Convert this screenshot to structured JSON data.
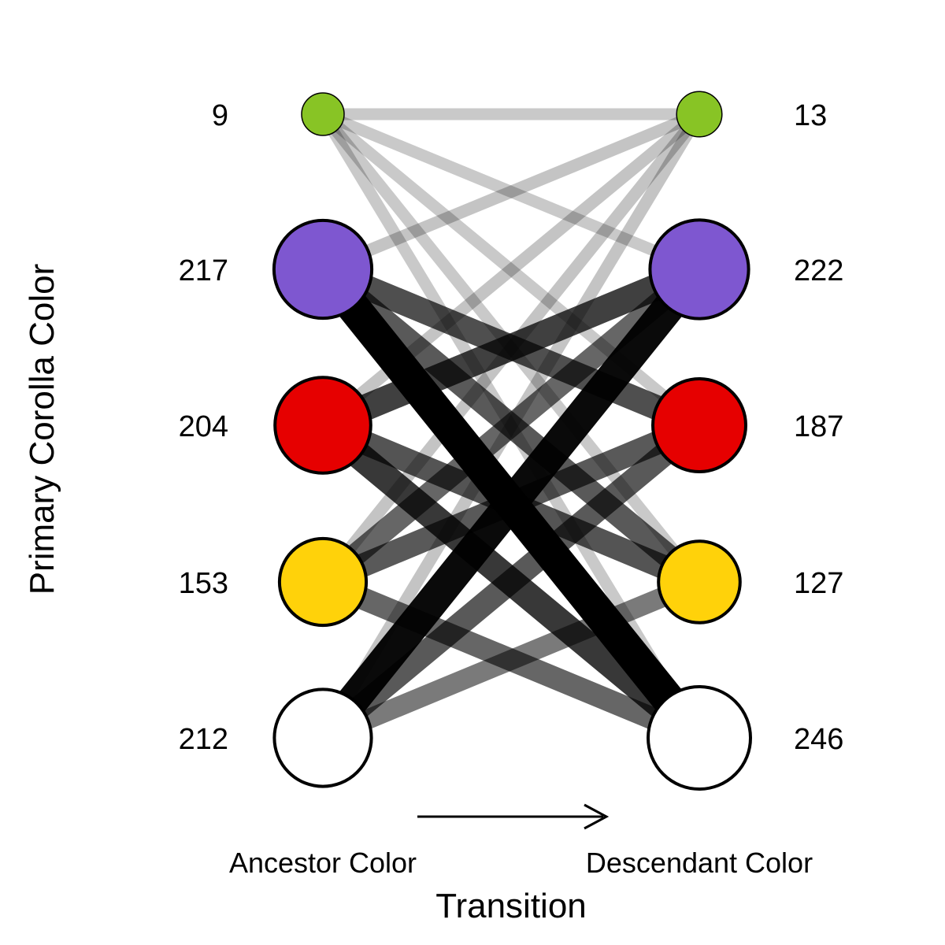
{
  "yaxis_title": "Primary Corolla Color",
  "xaxis_title": "Transition",
  "ancestor_label": "Ancestor Color",
  "descendant_label": "Descendant Color",
  "colors": {
    "green": "#88c425",
    "purple": "#7e57d0",
    "red": "#e60000",
    "yellow": "#ffd20a",
    "white": "#ffffff"
  },
  "ancestor_nodes": [
    {
      "color": "green",
      "count": "9"
    },
    {
      "color": "purple",
      "count": "217"
    },
    {
      "color": "red",
      "count": "204"
    },
    {
      "color": "yellow",
      "count": "153"
    },
    {
      "color": "white",
      "count": "212"
    }
  ],
  "descendant_nodes": [
    {
      "color": "green",
      "count": "13"
    },
    {
      "color": "purple",
      "count": "222"
    },
    {
      "color": "red",
      "count": "187"
    },
    {
      "color": "yellow",
      "count": "127"
    },
    {
      "color": "white",
      "count": "246"
    }
  ],
  "transitions": [
    {
      "from": "green",
      "to": "green",
      "weight": 0.1
    },
    {
      "from": "green",
      "to": "purple",
      "weight": 0.1
    },
    {
      "from": "green",
      "to": "red",
      "weight": 0.1
    },
    {
      "from": "green",
      "to": "yellow",
      "weight": 0.1
    },
    {
      "from": "green",
      "to": "white",
      "weight": 0.1
    },
    {
      "from": "purple",
      "to": "green",
      "weight": 0.12
    },
    {
      "from": "purple",
      "to": "red",
      "weight": 0.65
    },
    {
      "from": "purple",
      "to": "yellow",
      "weight": 0.6
    },
    {
      "from": "purple",
      "to": "white",
      "weight": 1.0
    },
    {
      "from": "red",
      "to": "green",
      "weight": 0.12
    },
    {
      "from": "red",
      "to": "purple",
      "weight": 0.72
    },
    {
      "from": "red",
      "to": "yellow",
      "weight": 0.62
    },
    {
      "from": "red",
      "to": "white",
      "weight": 0.75
    },
    {
      "from": "yellow",
      "to": "green",
      "weight": 0.12
    },
    {
      "from": "yellow",
      "to": "purple",
      "weight": 0.55
    },
    {
      "from": "yellow",
      "to": "red",
      "weight": 0.6
    },
    {
      "from": "yellow",
      "to": "white",
      "weight": 0.55
    },
    {
      "from": "white",
      "to": "green",
      "weight": 0.12
    },
    {
      "from": "white",
      "to": "purple",
      "weight": 0.95
    },
    {
      "from": "white",
      "to": "red",
      "weight": 0.6
    },
    {
      "from": "white",
      "to": "yellow",
      "weight": 0.45
    }
  ]
}
